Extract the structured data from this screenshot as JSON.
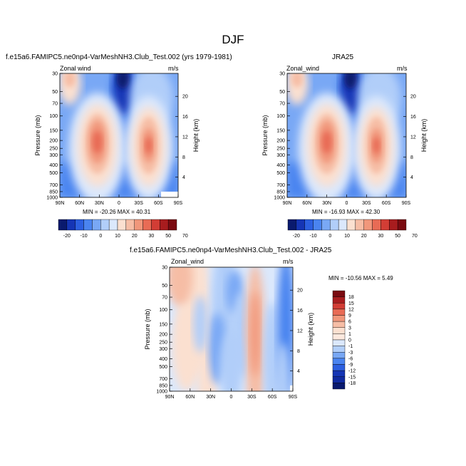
{
  "figure": {
    "title": "DJF",
    "palette": [
      "#0a1a6e",
      "#1535b5",
      "#2c5fe0",
      "#4a84f0",
      "#79a8f5",
      "#b1cef9",
      "#dbe8fc",
      "#fbe0d0",
      "#f6bda5",
      "#f1977b",
      "#e86b55",
      "#d23d35",
      "#a81c1e",
      "#7a0a10"
    ]
  },
  "panels": [
    {
      "id": "model",
      "title": "f.e15a6.FAMIPC5.ne0np4-VarMeshNH3.Club_Test.002 (yrs 1979-1981)",
      "var_label": "Zonal wind",
      "units": "m/s",
      "ylabel": "Pressure (mb)",
      "ylabel_right": "Height (km)",
      "stats": "MIN = -20.26   MAX = 40.31"
    },
    {
      "id": "obs",
      "title": "JRA25",
      "var_label": "Zonal_wind",
      "units": "m/s",
      "ylabel": "Pressure (mb)",
      "ylabel_right": "Height (km)",
      "stats": "MIN = -16.93   MAX = 42.30"
    },
    {
      "id": "diff",
      "title": "f.e15a6.FAMIPC5.ne0np4-VarMeshNH3.Club_Test.002 - JRA25",
      "var_label": "Zonal_wind",
      "units": "m/s",
      "ylabel": "Pressure (mb)",
      "ylabel_right": "Height (km)",
      "stats": "MIN = -10.56   MAX =   5.49"
    }
  ],
  "colorbar_top": {
    "labels": [
      "-20",
      "-10",
      "0",
      "10",
      "20",
      "30",
      "50",
      "70"
    ]
  },
  "colorbar_diff": {
    "labels": [
      "18",
      "15",
      "12",
      "9",
      "6",
      "3",
      "1",
      "0",
      "-1",
      "-3",
      "-6",
      "-9",
      "-12",
      "-15",
      "-18"
    ]
  },
  "chart_data": [
    {
      "type": "heatmap",
      "title": "f.e15a6.FAMIPC5.ne0np4-VarMeshNH3.Club_Test.002 (yrs 1979-1981)",
      "variable": "Zonal wind",
      "units": "m/s",
      "xlabel": "",
      "ylabel": "Pressure (mb)",
      "ylabel_right": "Height (km)",
      "x_ticks": [
        "90N",
        "60N",
        "30N",
        "0",
        "30S",
        "60S",
        "90S"
      ],
      "y_ticks": [
        "30",
        "50",
        "70",
        "100",
        "150",
        "200",
        "250",
        "300",
        "400",
        "500",
        "700",
        "850",
        "1000"
      ],
      "y_ticks_right": [
        "20",
        "16",
        "12",
        "8",
        "4"
      ],
      "y_scale": "log",
      "ylim": [
        1000,
        30
      ],
      "min": -20.26,
      "max": 40.31,
      "levels": [
        -20,
        -15,
        -10,
        -5,
        0,
        5,
        10,
        15,
        20,
        25,
        30,
        40,
        50,
        60,
        70
      ],
      "features": [
        {
          "lat": 33,
          "p": 200,
          "u": 40
        },
        {
          "lat": -45,
          "p": 250,
          "u": 35
        },
        {
          "lat": -7,
          "p": 50,
          "u": -20
        },
        {
          "lat": 75,
          "p": 35,
          "u": 10
        }
      ]
    },
    {
      "type": "heatmap",
      "title": "JRA25",
      "variable": "Zonal_wind",
      "units": "m/s",
      "ylabel": "Pressure (mb)",
      "ylabel_right": "Height (km)",
      "x_ticks": [
        "90N",
        "60N",
        "30N",
        "0",
        "30S",
        "60S",
        "90S"
      ],
      "y_ticks": [
        "30",
        "50",
        "70",
        "100",
        "150",
        "200",
        "250",
        "300",
        "400",
        "500",
        "700",
        "850",
        "1000"
      ],
      "y_ticks_right": [
        "20",
        "16",
        "12",
        "8",
        "4"
      ],
      "y_scale": "log",
      "ylim": [
        1000,
        30
      ],
      "min": -16.93,
      "max": 42.3,
      "levels": [
        -20,
        -15,
        -10,
        -5,
        0,
        5,
        10,
        15,
        20,
        25,
        30,
        40,
        50,
        60,
        70
      ],
      "features": [
        {
          "lat": 30,
          "p": 200,
          "u": 42
        },
        {
          "lat": -45,
          "p": 250,
          "u": 33
        },
        {
          "lat": -8,
          "p": 40,
          "u": -17
        }
      ]
    },
    {
      "type": "heatmap",
      "title": "f.e15a6.FAMIPC5.ne0np4-VarMeshNH3.Club_Test.002 - JRA25",
      "variable": "Zonal_wind",
      "units": "m/s",
      "ylabel": "Pressure (mb)",
      "ylabel_right": "Height (km)",
      "x_ticks": [
        "90N",
        "60N",
        "30N",
        "0",
        "30S",
        "60S",
        "90S"
      ],
      "y_ticks": [
        "30",
        "50",
        "70",
        "100",
        "150",
        "200",
        "250",
        "300",
        "400",
        "500",
        "700",
        "850",
        "1000"
      ],
      "y_ticks_right": [
        "20",
        "16",
        "12",
        "8",
        "4"
      ],
      "y_scale": "log",
      "ylim": [
        1000,
        30
      ],
      "min": -10.56,
      "max": 5.49,
      "levels": [
        -18,
        -15,
        -12,
        -9,
        -6,
        -3,
        -1,
        0,
        1,
        3,
        6,
        9,
        12,
        15,
        18
      ],
      "features": [
        {
          "lat": 65,
          "p": 50,
          "u": 4
        },
        {
          "lat": -35,
          "p": 250,
          "u": 5
        },
        {
          "lat": 10,
          "p": 100,
          "u": -6
        },
        {
          "lat": -80,
          "p": 150,
          "u": -8
        }
      ]
    }
  ]
}
